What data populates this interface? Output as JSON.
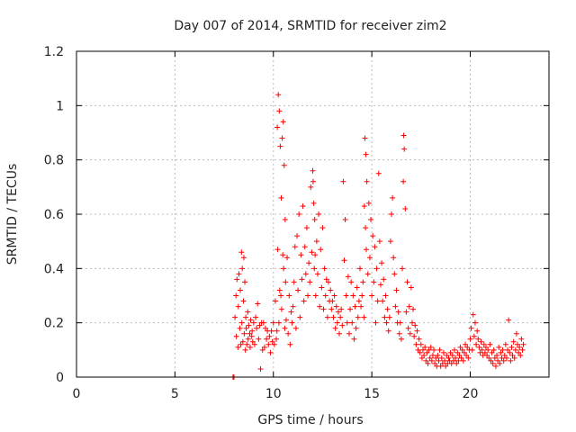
{
  "chart_data": {
    "type": "scatter",
    "title": "Day 007 of 2014, SRMTID for receiver zim2",
    "xlabel": "GPS time / hours",
    "ylabel": "SRMTID / TECUs",
    "xlim": [
      0,
      24
    ],
    "ylim": [
      0,
      1.2
    ],
    "xticks": [
      0,
      5,
      10,
      15,
      20
    ],
    "xtick_labels": [
      "0",
      "5",
      "10",
      "15",
      "20"
    ],
    "yticks": [
      0,
      0.2,
      0.4,
      0.6,
      0.8,
      1.0,
      1.2
    ],
    "ytick_labels": [
      "0",
      "0.2",
      "0.4",
      "0.6",
      "0.8",
      "1",
      "1.2"
    ],
    "grid": true,
    "marker": "+",
    "color": "#ff0000",
    "series": [
      {
        "name": "zim2",
        "x": [
          7.95,
          8.0,
          8.05,
          8.1,
          8.12,
          8.15,
          8.2,
          8.22,
          8.25,
          8.3,
          8.32,
          8.35,
          8.38,
          8.4,
          8.42,
          8.45,
          8.48,
          8.5,
          8.52,
          8.55,
          8.58,
          8.6,
          8.62,
          8.65,
          8.7,
          8.72,
          8.75,
          8.8,
          8.82,
          8.85,
          8.9,
          8.92,
          8.95,
          9.0,
          9.05,
          9.1,
          9.15,
          9.2,
          9.25,
          9.3,
          9.35,
          9.4,
          9.45,
          9.5,
          9.55,
          9.6,
          9.65,
          9.7,
          9.75,
          9.8,
          9.85,
          9.9,
          9.95,
          10.0,
          10.05,
          10.1,
          10.15,
          10.18,
          10.2,
          10.22,
          10.25,
          10.28,
          10.3,
          10.32,
          10.35,
          10.38,
          10.4,
          10.42,
          10.45,
          10.48,
          10.5,
          10.52,
          10.55,
          10.58,
          10.6,
          10.62,
          10.65,
          10.7,
          10.75,
          10.8,
          10.85,
          10.9,
          10.95,
          11.0,
          11.05,
          11.1,
          11.15,
          11.2,
          11.25,
          11.3,
          11.35,
          11.4,
          11.45,
          11.5,
          11.55,
          11.6,
          11.65,
          11.7,
          11.75,
          11.8,
          11.85,
          11.9,
          11.95,
          12.0,
          12.02,
          12.05,
          12.08,
          12.1,
          12.12,
          12.15,
          12.2,
          12.25,
          12.3,
          12.35,
          12.4,
          12.45,
          12.5,
          12.55,
          12.6,
          12.65,
          12.7,
          12.75,
          12.8,
          12.85,
          12.9,
          12.95,
          13.0,
          13.05,
          13.1,
          13.15,
          13.2,
          13.25,
          13.3,
          13.35,
          13.4,
          13.45,
          13.5,
          13.55,
          13.6,
          13.65,
          13.7,
          13.75,
          13.8,
          13.85,
          13.9,
          13.95,
          14.0,
          14.05,
          14.1,
          14.15,
          14.2,
          14.25,
          14.3,
          14.35,
          14.4,
          14.45,
          14.5,
          14.55,
          14.6,
          14.62,
          14.65,
          14.68,
          14.7,
          14.72,
          14.75,
          14.8,
          14.85,
          14.9,
          14.95,
          15.0,
          15.05,
          15.1,
          15.15,
          15.2,
          15.25,
          15.3,
          15.35,
          15.4,
          15.45,
          15.5,
          15.55,
          15.6,
          15.65,
          15.7,
          15.75,
          15.8,
          15.85,
          15.9,
          15.95,
          16.0,
          16.05,
          16.1,
          16.15,
          16.2,
          16.25,
          16.3,
          16.35,
          16.4,
          16.45,
          16.5,
          16.55,
          16.6,
          16.62,
          16.65,
          16.7,
          16.75,
          16.8,
          16.85,
          16.9,
          16.95,
          17.0,
          17.05,
          17.1,
          17.15,
          17.2,
          17.25,
          17.3,
          17.35,
          17.4,
          17.45,
          17.5,
          17.55,
          17.6,
          17.65,
          17.7,
          17.75,
          17.8,
          17.85,
          17.9,
          17.95,
          18.0,
          18.05,
          18.1,
          18.15,
          18.2,
          18.25,
          18.3,
          18.35,
          18.4,
          18.45,
          18.5,
          18.55,
          18.6,
          18.65,
          18.7,
          18.75,
          18.8,
          18.85,
          18.9,
          18.95,
          19.0,
          19.05,
          19.1,
          19.15,
          19.2,
          19.25,
          19.3,
          19.35,
          19.4,
          19.45,
          19.5,
          19.55,
          19.6,
          19.65,
          19.7,
          19.75,
          19.8,
          19.85,
          19.9,
          19.95,
          20.0,
          20.05,
          20.1,
          20.15,
          20.2,
          20.25,
          20.3,
          20.35,
          20.4,
          20.45,
          20.5,
          20.55,
          20.6,
          20.65,
          20.7,
          20.75,
          20.8,
          20.85,
          20.9,
          20.95,
          21.0,
          21.05,
          21.1,
          21.15,
          21.2,
          21.25,
          21.3,
          21.35,
          21.4,
          21.45,
          21.5,
          21.55,
          21.6,
          21.65,
          21.7,
          21.75,
          21.8,
          21.85,
          21.9,
          21.95,
          22.0,
          22.05,
          22.1,
          22.15,
          22.2,
          22.25,
          22.3,
          22.35,
          22.4,
          22.45,
          22.5,
          22.55,
          22.6,
          22.65,
          22.7
        ],
        "y": [
          0.0,
          0.0,
          0.22,
          0.3,
          0.15,
          0.36,
          0.11,
          0.26,
          0.38,
          0.18,
          0.32,
          0.12,
          0.46,
          0.2,
          0.4,
          0.13,
          0.28,
          0.44,
          0.16,
          0.35,
          0.1,
          0.22,
          0.18,
          0.12,
          0.24,
          0.14,
          0.19,
          0.16,
          0.11,
          0.21,
          0.15,
          0.17,
          0.13,
          0.2,
          0.12,
          0.22,
          0.18,
          0.27,
          0.14,
          0.19,
          0.03,
          0.2,
          0.1,
          0.2,
          0.11,
          0.18,
          0.14,
          0.17,
          0.12,
          0.15,
          0.09,
          0.17,
          0.13,
          0.2,
          0.12,
          0.28,
          0.14,
          0.17,
          0.92,
          0.47,
          1.04,
          0.2,
          0.98,
          0.32,
          0.85,
          0.3,
          0.66,
          0.25,
          0.88,
          0.45,
          0.94,
          0.4,
          0.78,
          0.18,
          0.58,
          0.35,
          0.21,
          0.44,
          0.16,
          0.3,
          0.12,
          0.24,
          0.2,
          0.26,
          0.35,
          0.48,
          0.18,
          0.52,
          0.32,
          0.6,
          0.22,
          0.45,
          0.36,
          0.63,
          0.28,
          0.48,
          0.38,
          0.55,
          0.3,
          0.42,
          0.35,
          0.7,
          0.46,
          0.76,
          0.72,
          0.64,
          0.4,
          0.58,
          0.45,
          0.3,
          0.5,
          0.38,
          0.6,
          0.26,
          0.47,
          0.33,
          0.55,
          0.25,
          0.4,
          0.3,
          0.36,
          0.22,
          0.35,
          0.28,
          0.32,
          0.25,
          0.28,
          0.22,
          0.3,
          0.18,
          0.26,
          0.2,
          0.24,
          0.16,
          0.22,
          0.25,
          0.19,
          0.72,
          0.43,
          0.58,
          0.3,
          0.2,
          0.37,
          0.16,
          0.25,
          0.35,
          0.2,
          0.3,
          0.14,
          0.26,
          0.18,
          0.33,
          0.22,
          0.28,
          0.4,
          0.26,
          0.3,
          0.35,
          0.22,
          0.63,
          0.88,
          0.55,
          0.82,
          0.47,
          0.72,
          0.38,
          0.64,
          0.44,
          0.58,
          0.3,
          0.52,
          0.35,
          0.48,
          0.2,
          0.4,
          0.28,
          0.75,
          0.5,
          0.34,
          0.42,
          0.28,
          0.36,
          0.22,
          0.3,
          0.2,
          0.25,
          0.17,
          0.22,
          0.5,
          0.6,
          0.66,
          0.44,
          0.38,
          0.26,
          0.32,
          0.2,
          0.24,
          0.16,
          0.2,
          0.14,
          0.4,
          0.72,
          0.89,
          0.84,
          0.62,
          0.24,
          0.35,
          0.18,
          0.26,
          0.16,
          0.33,
          0.2,
          0.25,
          0.15,
          0.19,
          0.12,
          0.17,
          0.1,
          0.14,
          0.09,
          0.12,
          0.07,
          0.1,
          0.08,
          0.11,
          0.06,
          0.09,
          0.05,
          0.1,
          0.07,
          0.11,
          0.06,
          0.08,
          0.1,
          0.05,
          0.07,
          0.04,
          0.08,
          0.06,
          0.1,
          0.04,
          0.07,
          0.05,
          0.09,
          0.06,
          0.04,
          0.08,
          0.05,
          0.07,
          0.06,
          0.09,
          0.05,
          0.08,
          0.06,
          0.1,
          0.07,
          0.05,
          0.09,
          0.06,
          0.08,
          0.11,
          0.07,
          0.1,
          0.06,
          0.09,
          0.12,
          0.08,
          0.11,
          0.07,
          0.1,
          0.14,
          0.18,
          0.1,
          0.23,
          0.15,
          0.2,
          0.12,
          0.17,
          0.14,
          0.11,
          0.09,
          0.13,
          0.1,
          0.08,
          0.12,
          0.09,
          0.11,
          0.08,
          0.1,
          0.07,
          0.12,
          0.06,
          0.09,
          0.05,
          0.1,
          0.07,
          0.04,
          0.08,
          0.06,
          0.11,
          0.05,
          0.09,
          0.07,
          0.1,
          0.06,
          0.08,
          0.12,
          0.07,
          0.1,
          0.21,
          0.09,
          0.06,
          0.11,
          0.08,
          0.13,
          0.07,
          0.1,
          0.16,
          0.12,
          0.09,
          0.11,
          0.08,
          0.14,
          0.1,
          0.12
        ]
      }
    ]
  }
}
